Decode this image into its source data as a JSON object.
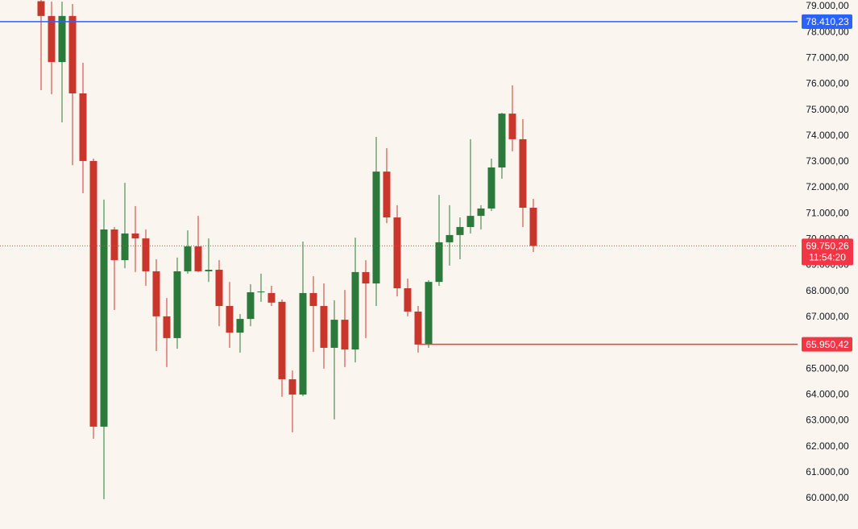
{
  "chart_data": {
    "type": "candlestick",
    "up_color": "#2b7a3b",
    "down_color": "#c9372c",
    "ylim": [
      58818,
      79247
    ],
    "yticks": [
      {
        "value": 60000,
        "label": "60.000,00"
      },
      {
        "value": 61000,
        "label": "61.000,00"
      },
      {
        "value": 62000,
        "label": "62.000,00"
      },
      {
        "value": 63000,
        "label": "63.000,00"
      },
      {
        "value": 64000,
        "label": "64.000,00"
      },
      {
        "value": 65000,
        "label": "65.000,00"
      },
      {
        "value": 66000,
        "label": "66.000,00"
      },
      {
        "value": 67000,
        "label": "67.000,00"
      },
      {
        "value": 68000,
        "label": "68.000,00"
      },
      {
        "value": 69000,
        "label": "69.000,00"
      },
      {
        "value": 70000,
        "label": "70.000,00"
      },
      {
        "value": 71000,
        "label": "71.000,00"
      },
      {
        "value": 72000,
        "label": "72.000,00"
      },
      {
        "value": 73000,
        "label": "73.000,00"
      },
      {
        "value": 74000,
        "label": "74.000,00"
      },
      {
        "value": 75000,
        "label": "75.000,00"
      },
      {
        "value": 76000,
        "label": "76.000,00"
      },
      {
        "value": 77000,
        "label": "77.000,00"
      },
      {
        "value": 78000,
        "label": "78.000,00"
      },
      {
        "value": 79000,
        "label": "79.000,00"
      }
    ],
    "series": [
      {
        "open": [
          79200,
          78630,
          76850,
          78630,
          75640,
          73030,
          62770,
          70385,
          69200,
          70230,
          70040,
          68770,
          67030,
          66190,
          68770,
          69730,
          68770,
          68830,
          67430,
          66400,
          66930,
          67960,
          67930,
          67590,
          64600,
          64010,
          67930,
          67430,
          65815,
          66900,
          65750,
          68740,
          68300,
          72620,
          70850,
          68115,
          67215,
          65940,
          68360,
          69890,
          70170,
          70480,
          70910,
          71195,
          72780,
          74860,
          73870,
          71225
        ],
        "high": [
          79400,
          79185,
          79180,
          79090,
          76820,
          73120,
          71540,
          70480,
          72190,
          71290,
          70385,
          69235,
          67740,
          69300,
          70350,
          70910,
          70040,
          69200,
          68360,
          67120,
          68270,
          68680,
          68210,
          67680,
          64940,
          69920,
          68580,
          68300,
          67650,
          68050,
          70070,
          69200,
          73960,
          73525,
          71320,
          68490,
          67430,
          68430,
          71720,
          71320,
          70850,
          73870,
          71320,
          73120,
          74890,
          75950,
          74645,
          71565
        ],
        "low": [
          75765,
          75610,
          74520,
          72870,
          71785,
          62300,
          59970,
          67275,
          68890,
          68740,
          68210,
          65690,
          65070,
          65780,
          68680,
          68740,
          68360,
          66650,
          65815,
          65630,
          66650,
          67590,
          67430,
          63920,
          62550,
          63950,
          65660,
          65010,
          63050,
          65070,
          65250,
          66190,
          67430,
          70630,
          67800,
          67030,
          65630,
          65815,
          68210,
          68990,
          69235,
          70230,
          70385,
          71100,
          72345,
          73400,
          70480,
          69515
        ],
        "close": [
          78630,
          76850,
          78630,
          75640,
          73030,
          62770,
          70385,
          69200,
          70230,
          70040,
          68770,
          67030,
          66190,
          68770,
          69730,
          68770,
          68830,
          67430,
          66400,
          66930,
          67960,
          67990,
          67560,
          64600,
          64010,
          67930,
          67430,
          65815,
          66900,
          65750,
          68740,
          68300,
          72620,
          70850,
          68115,
          67215,
          65940,
          68360,
          69890,
          70170,
          70480,
          70910,
          71195,
          72780,
          74860,
          73870,
          71225,
          69750.26
        ]
      }
    ],
    "price_lines": [
      {
        "value": 78410.23,
        "label": "78.410,23",
        "color": "#2962ff"
      },
      {
        "value": 65950.42,
        "label": "65.950,42",
        "color": "#f23645"
      }
    ],
    "last_price": {
      "value": 69750.26,
      "label": "69.750,26",
      "countdown": "11:54:20",
      "color": "#f23645"
    }
  }
}
